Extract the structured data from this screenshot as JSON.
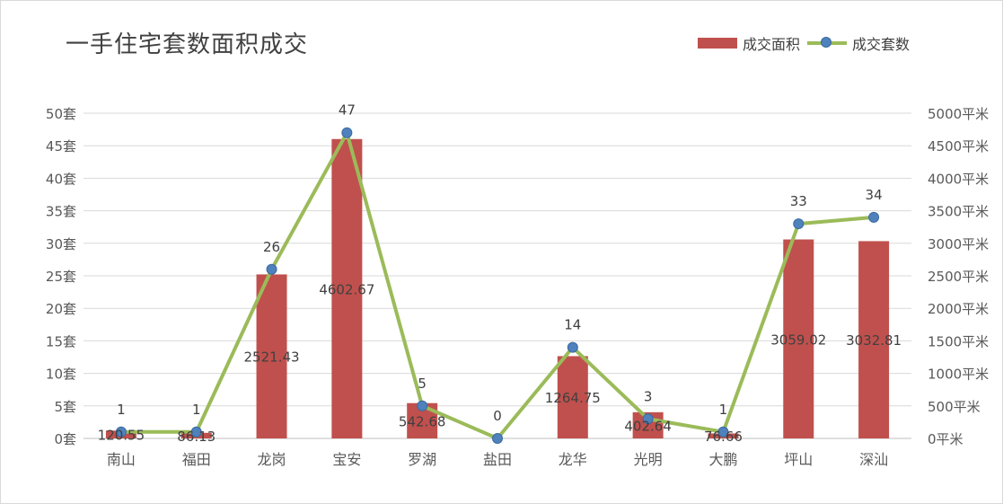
{
  "chart_data": {
    "type": "bar+line",
    "title": "一手住宅套数面积成交",
    "categories": [
      "南山",
      "福田",
      "龙岗",
      "宝安",
      "罗湖",
      "盐田",
      "龙华",
      "光明",
      "大鹏",
      "坪山",
      "深汕"
    ],
    "series": [
      {
        "name": "成交面积",
        "type": "bar",
        "axis": "right",
        "color": "#c0504d",
        "values": [
          120.55,
          86.13,
          2521.43,
          4602.67,
          542.68,
          0,
          1264.75,
          402.64,
          76.66,
          3059.02,
          3032.81
        ],
        "labels": [
          "120.55",
          "86.13",
          "2521.43",
          "4602.67",
          "542.68",
          "",
          "1264.75",
          "402.64",
          "76.66",
          "3059.02",
          "3032.81"
        ]
      },
      {
        "name": "成交套数",
        "type": "line",
        "axis": "left",
        "color": "#9bbb59",
        "marker_color": "#4f81bd",
        "values": [
          1,
          1,
          26,
          47,
          5,
          0,
          14,
          3,
          1,
          33,
          34
        ],
        "labels": [
          "1",
          "1",
          "26",
          "47",
          "5",
          "0",
          "14",
          "3",
          "1",
          "33",
          "34"
        ]
      }
    ],
    "y_left": {
      "ylim": [
        0,
        50
      ],
      "ticks": [
        "0套",
        "5套",
        "10套",
        "15套",
        "20套",
        "25套",
        "30套",
        "35套",
        "40套",
        "45套",
        "50套"
      ]
    },
    "y_right": {
      "ylim": [
        0,
        5000
      ],
      "ticks": [
        "0平米",
        "500平米",
        "1000平米",
        "1500平米",
        "2000平米",
        "2500平米",
        "3000平米",
        "3500平米",
        "4000平米",
        "4500平米",
        "5000平米"
      ]
    },
    "grid": true,
    "legend": "top-right"
  }
}
